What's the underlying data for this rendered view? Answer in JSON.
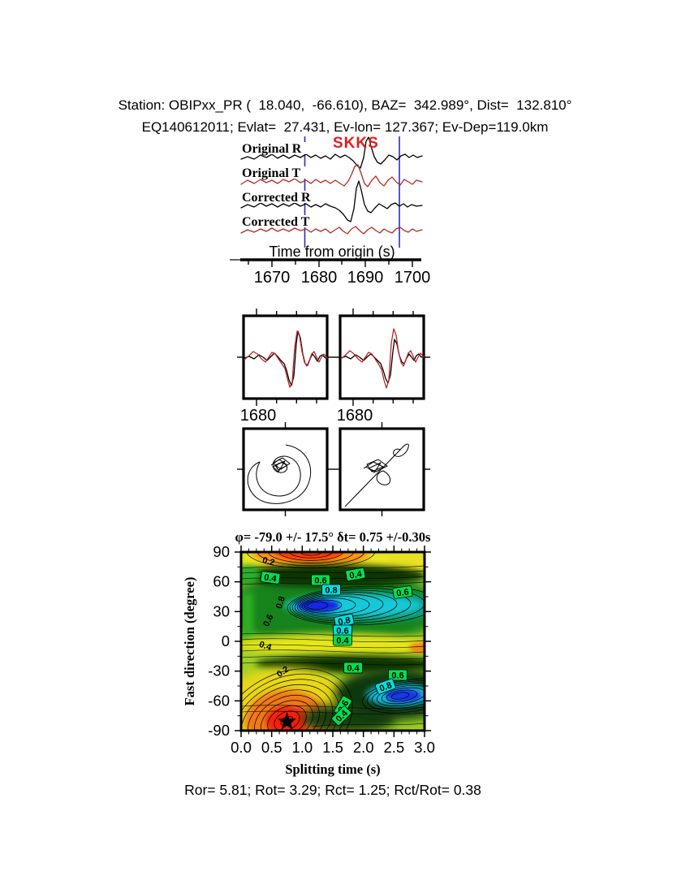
{
  "header": {
    "line1": "Station: OBIPxx_PR (  18.040,  -66.610), BAZ=  342.989°, Dist=  132.810°",
    "line2": "EQ140612011; Evlat=  27.431, Ev-lon= 127.367; Ev-Dep=119.0km"
  },
  "seismogram": {
    "phase_label": "SKKS",
    "phase_color": "#e02020",
    "trace_labels": [
      "Original R",
      "Original T",
      "Corrected R",
      "Corrected T"
    ],
    "radial_color": "#000000",
    "transverse_color": "#b82828",
    "window_line_color": "#2830b8",
    "axis_label": "Time from origin (s)",
    "tick_labels": [
      "1670",
      "1680",
      "1690",
      "1700"
    ]
  },
  "waveform_compare": {
    "left_tick_label": "1680",
    "right_tick_label": "1680"
  },
  "contour": {
    "title": "φ= -79.0 +/- 17.5° δt= 0.75 +/-0.30s",
    "ylabel": "Fast direction (degree)",
    "xlabel": "Splitting time (s)",
    "yticks": [
      "90",
      "60",
      "30",
      "0",
      "-30",
      "-60",
      "-90"
    ],
    "xticks": [
      "0.0",
      "0.5",
      "1.0",
      "1.5",
      "2.0",
      "2.5",
      "3.0"
    ],
    "labels": [
      "0.2",
      "0.4",
      "0.6",
      "0.8",
      "0.4",
      "0.6",
      "0.8",
      "0.6",
      "0.8",
      "0.6",
      "0.4",
      "0.4",
      "0.2",
      "0.4",
      "0.6",
      "0.8",
      "0.6",
      "0.4"
    ],
    "label_box_green": "#00e050",
    "label_box_cyan": "#00e0e0"
  },
  "footer": {
    "stats": "Ror= 5.81; Rot= 3.29; Rct= 1.25; Rct/Rot= 0.38",
    "values": {
      "Ror": 5.81,
      "Rot": 3.29,
      "Rct": 1.25,
      "Rct_over_Rot": 0.38
    }
  },
  "chart_data": [
    {
      "type": "line",
      "panel": "seismogram-traces",
      "xlabel": "Time from origin (s)",
      "xticks": [
        1670,
        1680,
        1690,
        1700
      ],
      "x_range_approx": [
        1664,
        1702
      ],
      "series": [
        {
          "name": "Original R",
          "color": "black"
        },
        {
          "name": "Original T",
          "color": "red"
        },
        {
          "name": "Corrected R",
          "color": "black"
        },
        {
          "name": "Corrected T",
          "color": "red"
        }
      ],
      "annotations": [
        {
          "text": "SKKS",
          "color": "red",
          "x_approx": 1688
        }
      ],
      "window_marker_times_approx": [
        1677,
        1697
      ]
    },
    {
      "type": "line",
      "panel": "fast-slow-waveform-overlay",
      "boxes": [
        {
          "tick_label": "1680"
        },
        {
          "tick_label": "1680"
        }
      ],
      "series_colors": [
        "black",
        "red"
      ]
    },
    {
      "type": "scatter",
      "panel": "particle-motion",
      "boxes": [
        "original: elliptical motion",
        "corrected: linearized motion"
      ]
    },
    {
      "type": "heatmap",
      "panel": "splitting-misfit-contour",
      "title": "φ= -79.0 +/- 17.5° δt= 0.75 +/-0.30s",
      "xlabel": "Splitting time (s)",
      "ylabel": "Fast direction (degree)",
      "xlim": [
        0.0,
        3.0
      ],
      "ylim": [
        -90,
        90
      ],
      "xticks": [
        0.0,
        0.5,
        1.0,
        1.5,
        2.0,
        2.5,
        3.0
      ],
      "yticks": [
        90,
        60,
        30,
        0,
        -30,
        -60,
        -90
      ],
      "contour_levels_labeled": [
        0.2,
        0.4,
        0.6,
        0.8
      ],
      "best_fit": {
        "splitting_time_s": 0.75,
        "splitting_time_err_s": 0.3,
        "fast_direction_deg": -79.0,
        "fast_direction_err_deg": 17.5,
        "marker": "star",
        "marker_xy": [
          0.75,
          -79
        ]
      },
      "low_value_red_regions_xy": [
        [
          0.75,
          -79
        ],
        [
          1.15,
          90
        ]
      ],
      "high_value_blue_regions_xy": [
        [
          1.25,
          35
        ],
        [
          2.6,
          -55
        ]
      ]
    }
  ]
}
